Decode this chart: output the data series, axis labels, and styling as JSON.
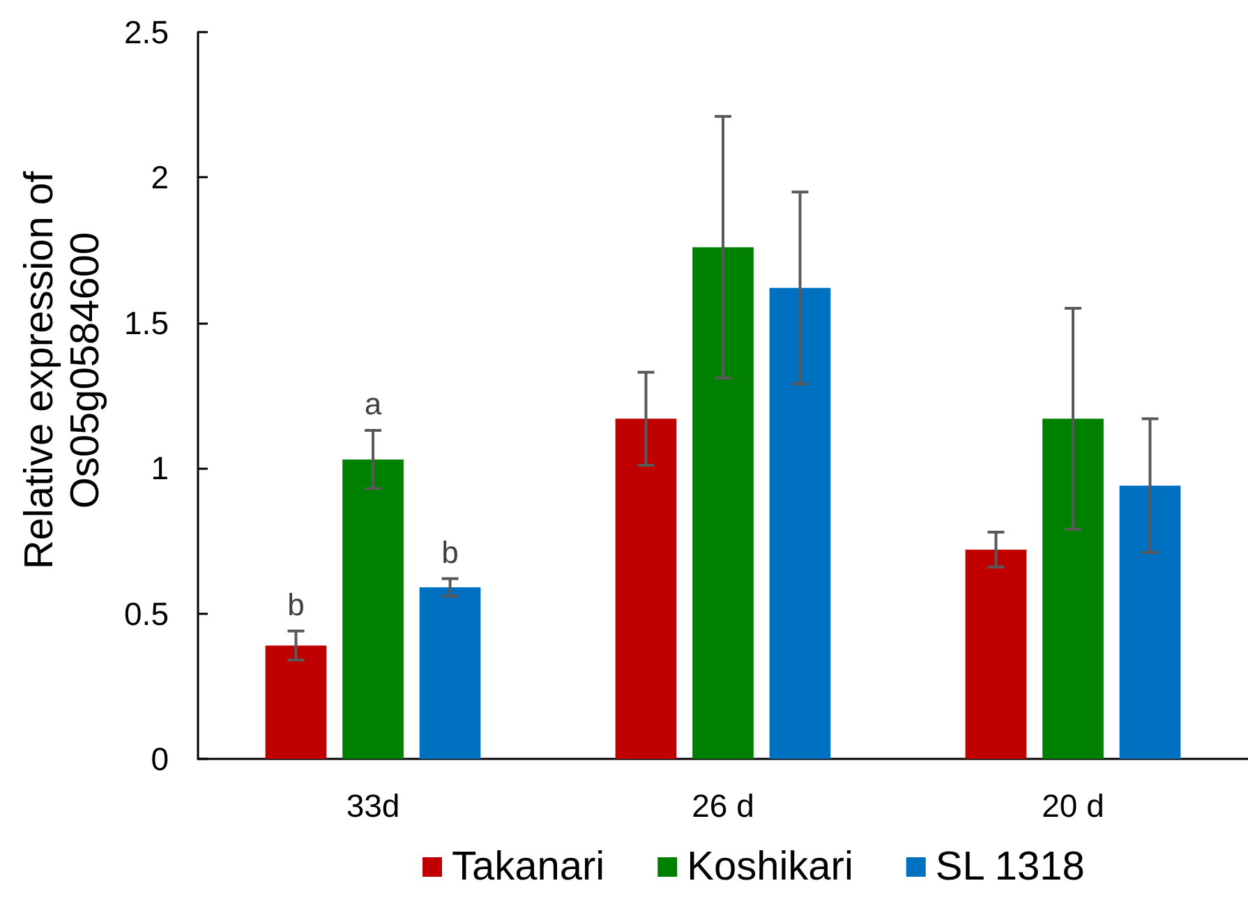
{
  "chart_data": {
    "type": "bar",
    "ylabel": "Relative expression of\nOs05g0584600",
    "categories": [
      "33d",
      "26 d",
      "20 d"
    ],
    "series": [
      {
        "name": "Takanari",
        "color": "#c00000",
        "values": [
          0.39,
          1.17,
          0.72
        ],
        "errors": [
          0.05,
          0.16,
          0.06
        ],
        "value_labels": [
          "b",
          null,
          null
        ]
      },
      {
        "name": "Koshikari",
        "color": "#008000",
        "values": [
          1.03,
          1.76,
          1.17
        ],
        "errors": [
          0.1,
          0.45,
          0.38
        ],
        "value_labels": [
          "a",
          null,
          null
        ]
      },
      {
        "name": "SL 1318",
        "color": "#0070c0",
        "values": [
          0.59,
          1.62,
          0.94
        ],
        "errors": [
          0.03,
          0.33,
          0.23
        ],
        "value_labels": [
          "b",
          null,
          null
        ]
      }
    ],
    "ylim": [
      0,
      2.5
    ],
    "yticks": [
      0,
      0.5,
      1,
      1.5,
      2,
      2.5
    ],
    "grid": false,
    "legend": "bottom"
  }
}
